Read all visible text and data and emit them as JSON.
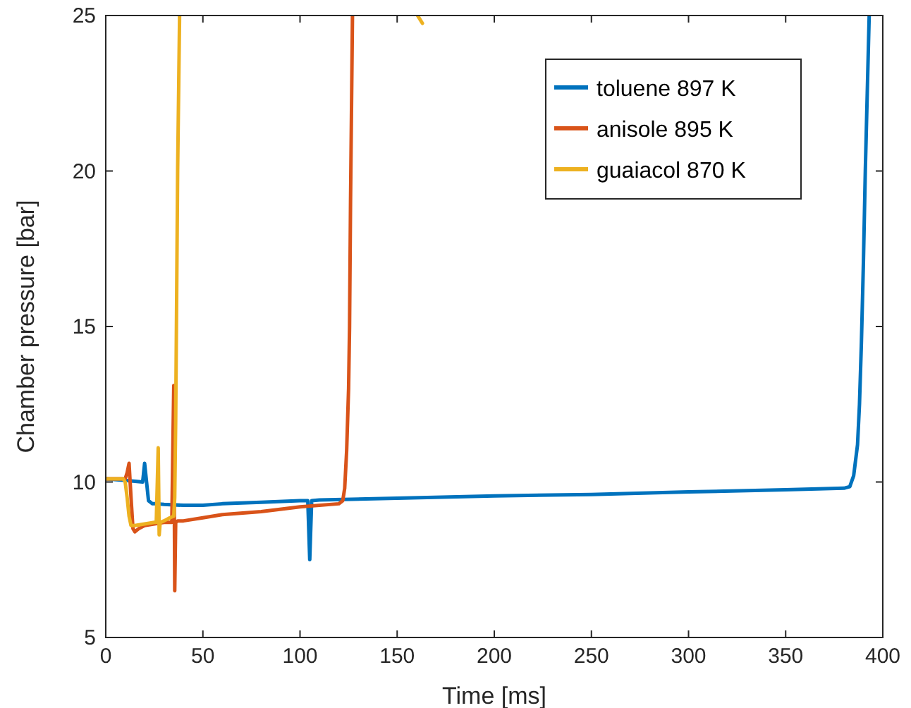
{
  "chart_data": {
    "type": "line",
    "xlabel": "Time [ms]",
    "ylabel": "Chamber pressure [bar]",
    "xlim": [
      0,
      400
    ],
    "ylim": [
      5,
      25
    ],
    "xticks": [
      0,
      50,
      100,
      150,
      200,
      250,
      300,
      350,
      400
    ],
    "yticks": [
      5,
      10,
      15,
      20,
      25
    ],
    "grid": false,
    "legend": "top right",
    "line_style": "solid",
    "series": [
      {
        "name": "toluene 897 K",
        "color": "#0072bd",
        "x": [
          0,
          10,
          19,
          20,
          21,
          22,
          24,
          26,
          30,
          40,
          50,
          60,
          80,
          100,
          104,
          105,
          106,
          110,
          150,
          200,
          250,
          300,
          350,
          380,
          383,
          385,
          387,
          388,
          389,
          390,
          391,
          392,
          393
        ],
        "values": [
          10.1,
          10.05,
          10.0,
          10.6,
          10.0,
          9.4,
          9.3,
          9.3,
          9.28,
          9.25,
          9.25,
          9.3,
          9.35,
          9.4,
          9.4,
          7.5,
          9.4,
          9.42,
          9.48,
          9.55,
          9.6,
          9.68,
          9.75,
          9.8,
          9.85,
          10.2,
          11.2,
          12.5,
          14.5,
          17,
          20,
          22.5,
          25
        ]
      },
      {
        "name": "anisole 895 K",
        "color": "#d95319",
        "x": [
          0,
          10,
          11,
          12,
          13,
          14,
          15,
          17,
          20,
          25,
          30,
          34,
          35,
          35.5,
          36,
          37,
          40,
          50,
          60,
          80,
          100,
          120,
          122,
          123,
          124,
          125,
          125.5,
          126,
          127
        ],
        "values": [
          10.1,
          10.1,
          10.3,
          10.6,
          9.5,
          8.5,
          8.4,
          8.5,
          8.6,
          8.65,
          8.7,
          8.7,
          13.1,
          6.5,
          8.7,
          8.75,
          8.75,
          8.85,
          8.95,
          9.05,
          9.2,
          9.3,
          9.4,
          9.8,
          11,
          13,
          15,
          19,
          25
        ]
      },
      {
        "name": "guaiacol 870 K",
        "color": "#edb120",
        "x": [
          0,
          9,
          10,
          11,
          12,
          13,
          15,
          20,
          25,
          26,
          27,
          27.5,
          28,
          30,
          33,
          35,
          35.5,
          36,
          36.5,
          37,
          38,
          null,
          160.5,
          163
        ],
        "values": [
          10.1,
          10.1,
          10.0,
          9.5,
          8.9,
          8.6,
          8.6,
          8.65,
          8.7,
          8.7,
          11.1,
          8.3,
          8.7,
          8.75,
          8.85,
          8.9,
          9.5,
          12,
          16,
          20,
          25,
          null,
          25,
          24.75
        ]
      }
    ]
  }
}
